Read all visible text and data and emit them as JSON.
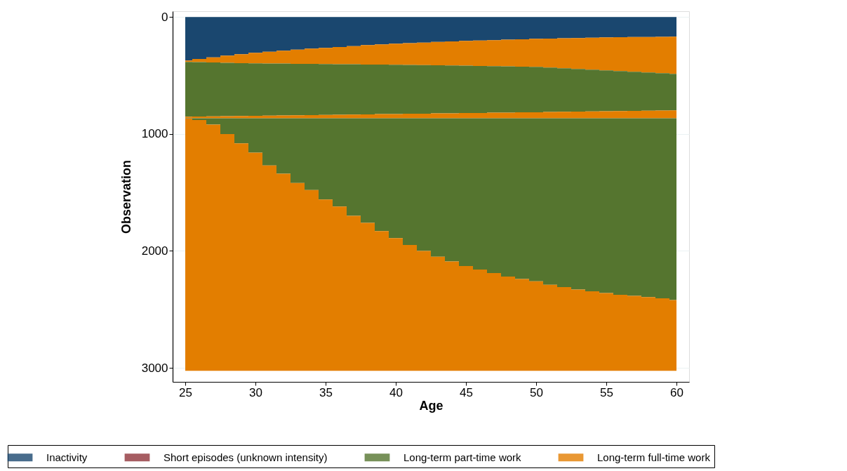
{
  "chart_data": {
    "type": "area",
    "stacked": true,
    "xlabel": "Age",
    "ylabel": "Observation",
    "x": [
      25,
      26,
      27,
      28,
      29,
      30,
      31,
      32,
      33,
      34,
      35,
      36,
      37,
      38,
      39,
      40,
      41,
      42,
      43,
      44,
      45,
      46,
      47,
      48,
      49,
      50,
      51,
      52,
      53,
      54,
      55,
      56,
      57,
      58,
      59,
      60
    ],
    "series": [
      {
        "name": "Inactivity",
        "color": "#1a476f",
        "values": [
          372,
          358,
          345,
          330,
          318,
          306,
          296,
          287,
          278,
          270,
          264,
          256,
          248,
          240,
          234,
          228,
          223,
          218,
          213,
          208,
          204,
          200,
          197,
          193,
          190,
          186,
          184,
          181,
          179,
          176,
          174,
          172,
          171,
          170,
          169,
          168
        ]
      },
      {
        "name": "Short episodes (unknown intensity)",
        "color": "#90353b",
        "values": [
          null,
          null,
          null,
          null,
          null,
          null,
          null,
          null,
          null,
          null,
          null,
          null,
          null,
          null,
          null,
          null,
          null,
          null,
          null,
          null,
          null,
          null,
          null,
          null,
          null,
          null,
          null,
          null,
          null,
          null,
          null,
          null,
          null,
          null,
          null,
          null
        ]
      },
      {
        "color": "#e37e00",
        "values": [
          12,
          28,
          44,
          61,
          76,
          90,
          101,
          111,
          122,
          131,
          138,
          147,
          156,
          166,
          173,
          180,
          187,
          193,
          200,
          206,
          212,
          218,
          223,
          229,
          234,
          240,
          248,
          257,
          265,
          274,
          282,
          290,
          297,
          304,
          311,
          318
        ]
      },
      {
        "name": "Long-term part-time work",
        "color": "#55752f",
        "values": [
          468,
          464,
          460,
          456,
          452,
          448,
          446,
          443,
          440,
          437,
          435,
          432,
          430,
          426,
          423,
          421,
          417,
          415,
          411,
          409,
          405,
          402,
          398,
          395,
          391,
          388,
          380,
          372,
          365,
          357,
          350,
          342,
          335,
          327,
          320,
          312
        ]
      },
      {
        "color": "#e37e00",
        "values": [
          14,
          16,
          17,
          19,
          20,
          22,
          23,
          25,
          26,
          28,
          29,
          31,
          32,
          34,
          36,
          37,
          39,
          40,
          42,
          43,
          45,
          46,
          48,
          49,
          51,
          52,
          54,
          56,
          57,
          59,
          60,
          62,
          63,
          65,
          66,
          68
        ]
      },
      {
        "color": "#55752f",
        "values": [
          2,
          14,
          54,
          134,
          214,
          294,
          404,
          474,
          554,
          614,
          694,
          754,
          834,
          894,
          964,
          1024,
          1084,
          1134,
          1184,
          1224,
          1264,
          1294,
          1324,
          1354,
          1374,
          1394,
          1424,
          1444,
          1464,
          1479,
          1494,
          1509,
          1519,
          1529,
          1539,
          1554
        ]
      },
      {
        "name": "Long-term full-time work",
        "color": "#e37e00",
        "values": [
          2157,
          2145,
          2105,
          2025,
          1945,
          1865,
          1755,
          1685,
          1605,
          1545,
          1465,
          1405,
          1325,
          1265,
          1195,
          1135,
          1075,
          1025,
          975,
          935,
          895,
          865,
          835,
          805,
          785,
          765,
          735,
          715,
          695,
          680,
          665,
          650,
          640,
          630,
          620,
          605
        ]
      }
    ],
    "xlim": [
      24.1,
      60.9
    ],
    "xticks": [
      25,
      30,
      35,
      40,
      45,
      50,
      55,
      60
    ],
    "ylim": [
      3120,
      -50
    ],
    "yticks": [
      0,
      1000,
      2000,
      3000
    ],
    "grid": "y",
    "legend": "bottom"
  }
}
